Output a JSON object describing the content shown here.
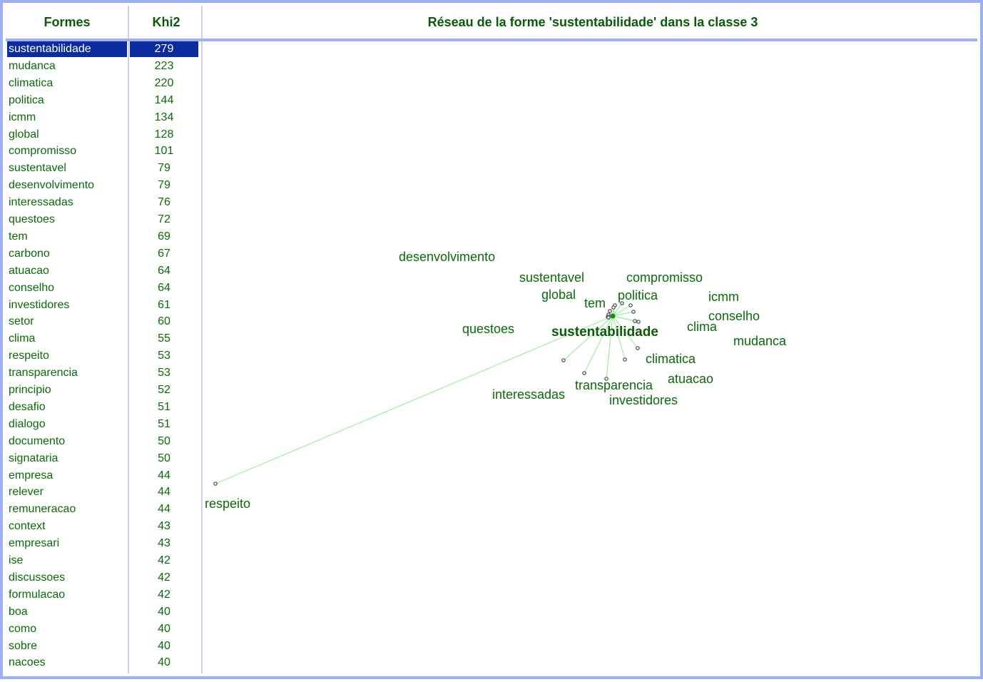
{
  "header": {
    "col1": "Formes",
    "col2": "Khi2",
    "title": "Réseau de la forme 'sustentabilidade' dans la classe 3"
  },
  "table": {
    "rows": [
      [
        "sustentabilidade",
        279
      ],
      [
        "mudanca",
        223
      ],
      [
        "climatica",
        220
      ],
      [
        "politica",
        144
      ],
      [
        "icmm",
        134
      ],
      [
        "global",
        128
      ],
      [
        "compromisso",
        101
      ],
      [
        "sustentavel",
        79
      ],
      [
        "desenvolvimento",
        79
      ],
      [
        "interessadas",
        76
      ],
      [
        "questoes",
        72
      ],
      [
        "tem",
        69
      ],
      [
        "carbono",
        67
      ],
      [
        "atuacao",
        64
      ],
      [
        "conselho",
        64
      ],
      [
        "investidores",
        61
      ],
      [
        "setor",
        60
      ],
      [
        "clima",
        55
      ],
      [
        "respeito",
        53
      ],
      [
        "transparencia",
        53
      ],
      [
        "principio",
        52
      ],
      [
        "desafio",
        51
      ],
      [
        "dialogo",
        51
      ],
      [
        "documento",
        50
      ],
      [
        "signataria",
        50
      ],
      [
        "empresa",
        44
      ],
      [
        "relever",
        44
      ],
      [
        "remuneracao",
        44
      ],
      [
        "context",
        43
      ],
      [
        "empresari",
        43
      ],
      [
        "ise",
        42
      ],
      [
        "discussoes",
        42
      ],
      [
        "formulacao",
        42
      ],
      [
        "boa",
        40
      ],
      [
        "como",
        40
      ],
      [
        "sobre",
        40
      ],
      [
        "nacoes",
        40
      ]
    ]
  },
  "network": {
    "center": "sustentabilidade",
    "nodes": [
      "desenvolvimento",
      "sustentavel",
      "compromisso",
      "global",
      "tem",
      "politica",
      "icmm",
      "conselho",
      "clima",
      "questoes",
      "mudanca",
      "climatica",
      "atuacao",
      "transparencia",
      "interessadas",
      "investidores",
      "respeito"
    ]
  }
}
